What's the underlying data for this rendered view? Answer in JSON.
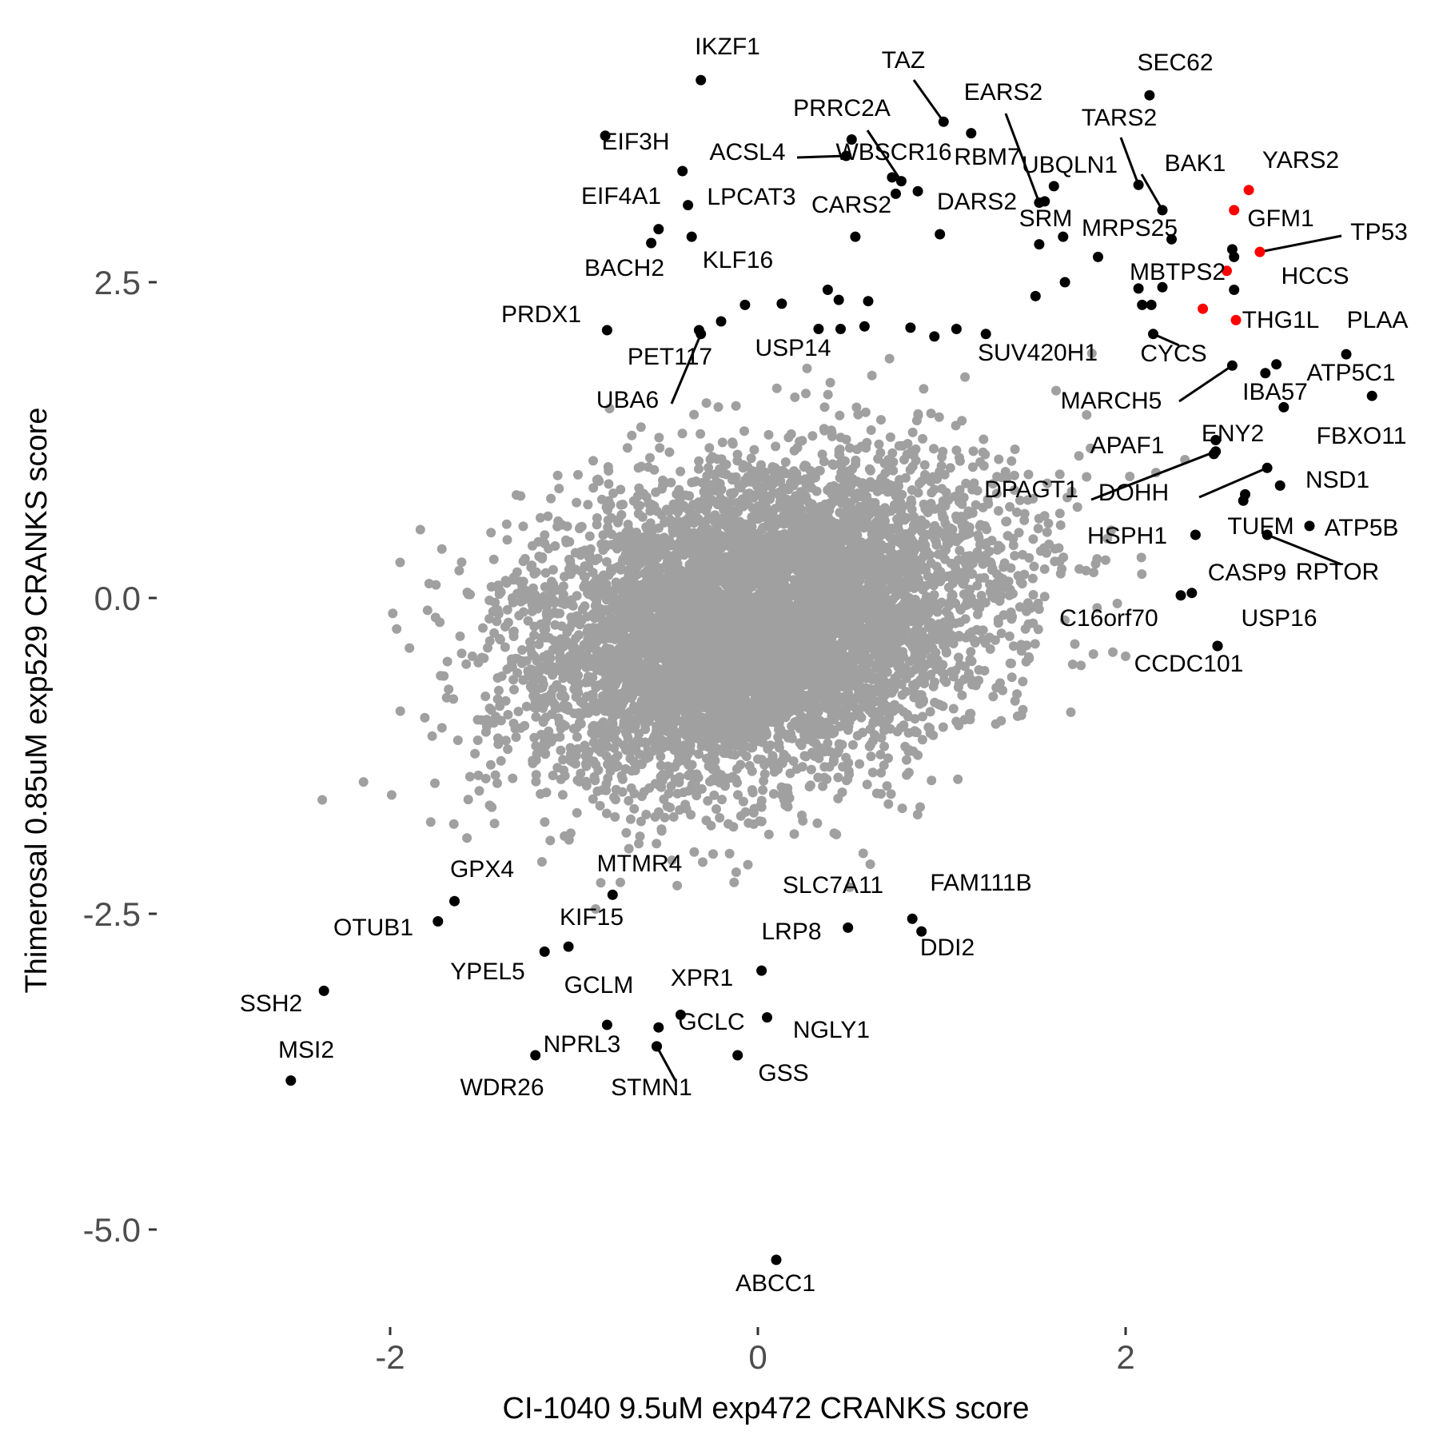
{
  "chart_data": {
    "type": "scatter",
    "title": "",
    "xlabel": "CI-1040 9.5uM exp472 CRANKS score",
    "ylabel": "Thimerosal 0.85uM exp529 CRANKS score",
    "xlim": [
      -3.0,
      3.6
    ],
    "ylim": [
      -6.0,
      4.1
    ],
    "x_ticks": [
      -2,
      0,
      2
    ],
    "x_tick_labels": [
      "-2",
      "0",
      "2"
    ],
    "y_ticks": [
      2.5,
      0,
      -2.5,
      -5
    ],
    "y_tick_labels": [
      "2.5",
      "0.0",
      "-2.5",
      "-5.0"
    ],
    "grid": false,
    "legend": "none",
    "colors": {
      "background_genes": "#a0a0a0",
      "highlighted": "#000000",
      "red_highlight": "#ff0000",
      "axis_text": "#4d4d4d"
    },
    "background_cloud": {
      "description": "approx. 18000 unlabeled genes, roughly normal around (0, -0.2)",
      "center": [
        0.0,
        -0.2
      ],
      "sd": [
        0.62,
        0.62
      ],
      "correlation": 0.25
    },
    "labeled_points": [
      {
        "label": "IKZF1",
        "x": -0.31,
        "y": 4.1,
        "color": "#000000"
      },
      {
        "label": "TAZ",
        "x": 1.01,
        "y": 3.77,
        "color": "#000000"
      },
      {
        "label": "SEC62",
        "x": 2.13,
        "y": 3.98,
        "color": "#000000"
      },
      {
        "label": "EARS2",
        "x": 1.53,
        "y": 3.13,
        "color": "#000000"
      },
      {
        "label": "PRRC2A",
        "x": 0.78,
        "y": 3.3,
        "color": "#000000"
      },
      {
        "label": "TARS2",
        "x": 2.07,
        "y": 3.27,
        "color": "#000000"
      },
      {
        "label": "EIF3H",
        "x": -0.41,
        "y": 3.38,
        "color": "#000000"
      },
      {
        "label": "ACSL4",
        "x": 0.48,
        "y": 3.5,
        "color": "#000000"
      },
      {
        "label": "WBSCR16",
        "x": 0.87,
        "y": 3.22,
        "color": "#000000"
      },
      {
        "label": "RBM7",
        "x": 1.16,
        "y": 3.68,
        "color": "#000000"
      },
      {
        "label": "UBQLN1",
        "x": 1.56,
        "y": 3.14,
        "color": "#000000"
      },
      {
        "label": "BAK1",
        "x": 2.2,
        "y": 3.07,
        "color": "#000000"
      },
      {
        "label": "YARS2",
        "x": 2.67,
        "y": 3.23,
        "color": "#ff0000"
      },
      {
        "label": "EIF4A1",
        "x": -0.54,
        "y": 2.92,
        "color": "#000000"
      },
      {
        "label": "LPCAT3",
        "x": -0.38,
        "y": 3.11,
        "color": "#000000"
      },
      {
        "label": "CARS2",
        "x": 0.53,
        "y": 2.86,
        "color": "#000000"
      },
      {
        "label": "DARS2",
        "x": 0.99,
        "y": 2.88,
        "color": "#000000"
      },
      {
        "label": "SRM",
        "x": 1.53,
        "y": 2.8,
        "color": "#000000"
      },
      {
        "label": "MRPS25",
        "x": 1.85,
        "y": 2.7,
        "color": "#000000"
      },
      {
        "label": "GFM1",
        "x": 2.58,
        "y": 2.76,
        "color": "#000000"
      },
      {
        "label": "TP53",
        "x": 2.73,
        "y": 2.74,
        "color": "#ff0000"
      },
      {
        "label": "BACH2",
        "x": -0.58,
        "y": 2.81,
        "color": "#000000"
      },
      {
        "label": "KLF16",
        "x": -0.36,
        "y": 2.86,
        "color": "#000000"
      },
      {
        "label": "MBTPS2",
        "x": 2.42,
        "y": 2.29,
        "color": "#ff0000"
      },
      {
        "label": "HCCS",
        "x": 2.59,
        "y": 2.44,
        "color": "#000000"
      },
      {
        "label": "PRDX1",
        "x": -0.82,
        "y": 2.12,
        "color": "#000000"
      },
      {
        "label": "PET117",
        "x": -0.32,
        "y": 2.12,
        "color": "#000000"
      },
      {
        "label": "USP14",
        "x": 0.13,
        "y": 2.33,
        "color": "#000000"
      },
      {
        "label": "THG1L",
        "x": 2.6,
        "y": 2.2,
        "color": "#ff0000"
      },
      {
        "label": "PLAA",
        "x": 3.2,
        "y": 1.93,
        "color": "#000000"
      },
      {
        "label": "UBA6",
        "x": -0.31,
        "y": 2.09,
        "color": "#000000"
      },
      {
        "label": "SUV420H1",
        "x": 1.24,
        "y": 2.09,
        "color": "#000000"
      },
      {
        "label": "CYCS",
        "x": 2.15,
        "y": 2.09,
        "color": "#000000"
      },
      {
        "label": "ATP5C1",
        "x": 2.76,
        "y": 1.78,
        "color": "#000000"
      },
      {
        "label": "MARCH5",
        "x": 2.58,
        "y": 1.84,
        "color": "#000000"
      },
      {
        "label": "IBA57",
        "x": 2.86,
        "y": 1.51,
        "color": "#000000"
      },
      {
        "label": "FBXO11",
        "x": 3.34,
        "y": 1.6,
        "color": "#000000"
      },
      {
        "label": "APAF1",
        "x": 2.48,
        "y": 1.14,
        "color": "#000000"
      },
      {
        "label": "ENY2",
        "x": 2.49,
        "y": 1.25,
        "color": "#000000"
      },
      {
        "label": "DPAGT1",
        "x": 2.49,
        "y": 1.16,
        "color": "#000000"
      },
      {
        "label": "DOHH",
        "x": 2.77,
        "y": 1.03,
        "color": "#000000"
      },
      {
        "label": "NSD1",
        "x": 2.84,
        "y": 0.89,
        "color": "#000000"
      },
      {
        "label": "HSPH1",
        "x": 2.64,
        "y": 0.77,
        "color": "#000000"
      },
      {
        "label": "TUFM",
        "x": 2.38,
        "y": 0.5,
        "color": "#000000"
      },
      {
        "label": "ATP5B",
        "x": 3.0,
        "y": 0.57,
        "color": "#000000"
      },
      {
        "label": "RPTOR",
        "x": 2.77,
        "y": 0.5,
        "color": "#000000"
      },
      {
        "label": "CASP9",
        "x": 2.36,
        "y": 0.04,
        "color": "#000000"
      },
      {
        "label": "C16orf70",
        "x": 2.3,
        "y": 0.02,
        "color": "#000000"
      },
      {
        "label": "USP16",
        "x": 2.5,
        "y": -0.38,
        "color": "#000000"
      },
      {
        "label": "CCDC101",
        "x": 2.5,
        "y": -0.38,
        "color": "#000000"
      },
      {
        "label": "GPX4",
        "x": -1.65,
        "y": -2.4,
        "color": "#000000"
      },
      {
        "label": "MTMR4",
        "x": -0.79,
        "y": -2.35,
        "color": "#000000"
      },
      {
        "label": "SLC7A11",
        "x": 0.49,
        "y": -2.61,
        "color": "#000000"
      },
      {
        "label": "FAM111B",
        "x": 0.84,
        "y": -2.54,
        "color": "#000000"
      },
      {
        "label": "OTUB1",
        "x": -1.74,
        "y": -2.56,
        "color": "#000000"
      },
      {
        "label": "KIF15",
        "x": -1.03,
        "y": -2.76,
        "color": "#000000"
      },
      {
        "label": "LRP8",
        "x": 0.02,
        "y": -2.95,
        "color": "#000000"
      },
      {
        "label": "DDI2",
        "x": 0.89,
        "y": -2.64,
        "color": "#000000"
      },
      {
        "label": "YPEL5",
        "x": -1.16,
        "y": -2.8,
        "color": "#000000"
      },
      {
        "label": "SSH2",
        "x": -2.36,
        "y": -3.11,
        "color": "#000000"
      },
      {
        "label": "XPR1",
        "x": -0.42,
        "y": -3.3,
        "color": "#000000"
      },
      {
        "label": "GCLM",
        "x": -0.82,
        "y": -3.38,
        "color": "#000000"
      },
      {
        "label": "GCLC",
        "x": -0.54,
        "y": -3.4,
        "color": "#000000"
      },
      {
        "label": "NGLY1",
        "x": 0.05,
        "y": -3.32,
        "color": "#000000"
      },
      {
        "label": "MSI2",
        "x": -2.54,
        "y": -3.82,
        "color": "#000000"
      },
      {
        "label": "NPRL3",
        "x": -0.55,
        "y": -3.55,
        "color": "#000000"
      },
      {
        "label": "WDR26",
        "x": -1.21,
        "y": -3.62,
        "color": "#000000"
      },
      {
        "label": "STMN1",
        "x": -0.55,
        "y": -3.55,
        "color": "#000000"
      },
      {
        "label": "GSS",
        "x": -0.11,
        "y": -3.62,
        "color": "#000000"
      },
      {
        "label": "ABCC1",
        "x": 0.1,
        "y": -5.24,
        "color": "#000000"
      }
    ],
    "unlabeled_highlighted_points": [
      {
        "x": -0.83,
        "y": 3.66,
        "color": "#000000"
      },
      {
        "x": 0.51,
        "y": 3.63,
        "color": "#000000"
      },
      {
        "x": 0.73,
        "y": 3.33,
        "color": "#000000"
      },
      {
        "x": 0.75,
        "y": 3.2,
        "color": "#000000"
      },
      {
        "x": 1.66,
        "y": 2.86,
        "color": "#000000"
      },
      {
        "x": 1.61,
        "y": 3.26,
        "color": "#000000"
      },
      {
        "x": 2.59,
        "y": 3.07,
        "color": "#ff0000"
      },
      {
        "x": 2.25,
        "y": 2.84,
        "color": "#000000"
      },
      {
        "x": 2.55,
        "y": 2.59,
        "color": "#ff0000"
      },
      {
        "x": 0.38,
        "y": 2.44,
        "color": "#000000"
      },
      {
        "x": 0.44,
        "y": 2.36,
        "color": "#000000"
      },
      {
        "x": 0.6,
        "y": 2.35,
        "color": "#000000"
      },
      {
        "x": 0.33,
        "y": 2.13,
        "color": "#000000"
      },
      {
        "x": 0.45,
        "y": 2.13,
        "color": "#000000"
      },
      {
        "x": 0.58,
        "y": 2.15,
        "color": "#000000"
      },
      {
        "x": 0.83,
        "y": 2.14,
        "color": "#000000"
      },
      {
        "x": 0.96,
        "y": 2.07,
        "color": "#000000"
      },
      {
        "x": 1.08,
        "y": 2.13,
        "color": "#000000"
      },
      {
        "x": 1.51,
        "y": 2.39,
        "color": "#000000"
      },
      {
        "x": 1.67,
        "y": 2.5,
        "color": "#000000"
      },
      {
        "x": -0.07,
        "y": 2.32,
        "color": "#000000"
      },
      {
        "x": -0.2,
        "y": 2.19,
        "color": "#000000"
      },
      {
        "x": 2.07,
        "y": 2.45,
        "color": "#000000"
      },
      {
        "x": 2.09,
        "y": 2.32,
        "color": "#000000"
      },
      {
        "x": 2.14,
        "y": 2.32,
        "color": "#000000"
      },
      {
        "x": 2.2,
        "y": 2.46,
        "color": "#000000"
      },
      {
        "x": 2.59,
        "y": 2.7,
        "color": "#000000"
      },
      {
        "x": 2.82,
        "y": 1.85,
        "color": "#000000"
      },
      {
        "x": 2.65,
        "y": 0.82,
        "color": "#000000"
      }
    ],
    "leader_lines": [
      {
        "from_label": "TAZ",
        "to": [
          1.01,
          3.77
        ]
      },
      {
        "from_label": "EARS2",
        "to": [
          1.53,
          3.13
        ]
      },
      {
        "from_label": "PRRC2A",
        "to": [
          0.78,
          3.3
        ]
      },
      {
        "from_label": "TARS2",
        "to": [
          2.07,
          3.27
        ]
      },
      {
        "from_label": "BAK1",
        "to": [
          2.2,
          3.07
        ]
      },
      {
        "from_label": "ACSL4",
        "to": [
          0.48,
          3.5
        ]
      },
      {
        "from_label": "TP53",
        "to": [
          2.73,
          2.74
        ]
      },
      {
        "from_label": "UBA6",
        "to": [
          -0.31,
          2.09
        ]
      },
      {
        "from_label": "CYCS",
        "to": [
          2.15,
          2.09
        ]
      },
      {
        "from_label": "MARCH5",
        "to": [
          2.58,
          1.84
        ]
      },
      {
        "from_label": "DPAGT1",
        "to": [
          2.49,
          1.16
        ]
      },
      {
        "from_label": "DOHH",
        "to": [
          2.77,
          1.03
        ]
      },
      {
        "from_label": "RPTOR",
        "to": [
          2.77,
          0.5
        ]
      },
      {
        "from_label": "STMN1",
        "to": [
          -0.55,
          -3.55
        ]
      }
    ]
  }
}
